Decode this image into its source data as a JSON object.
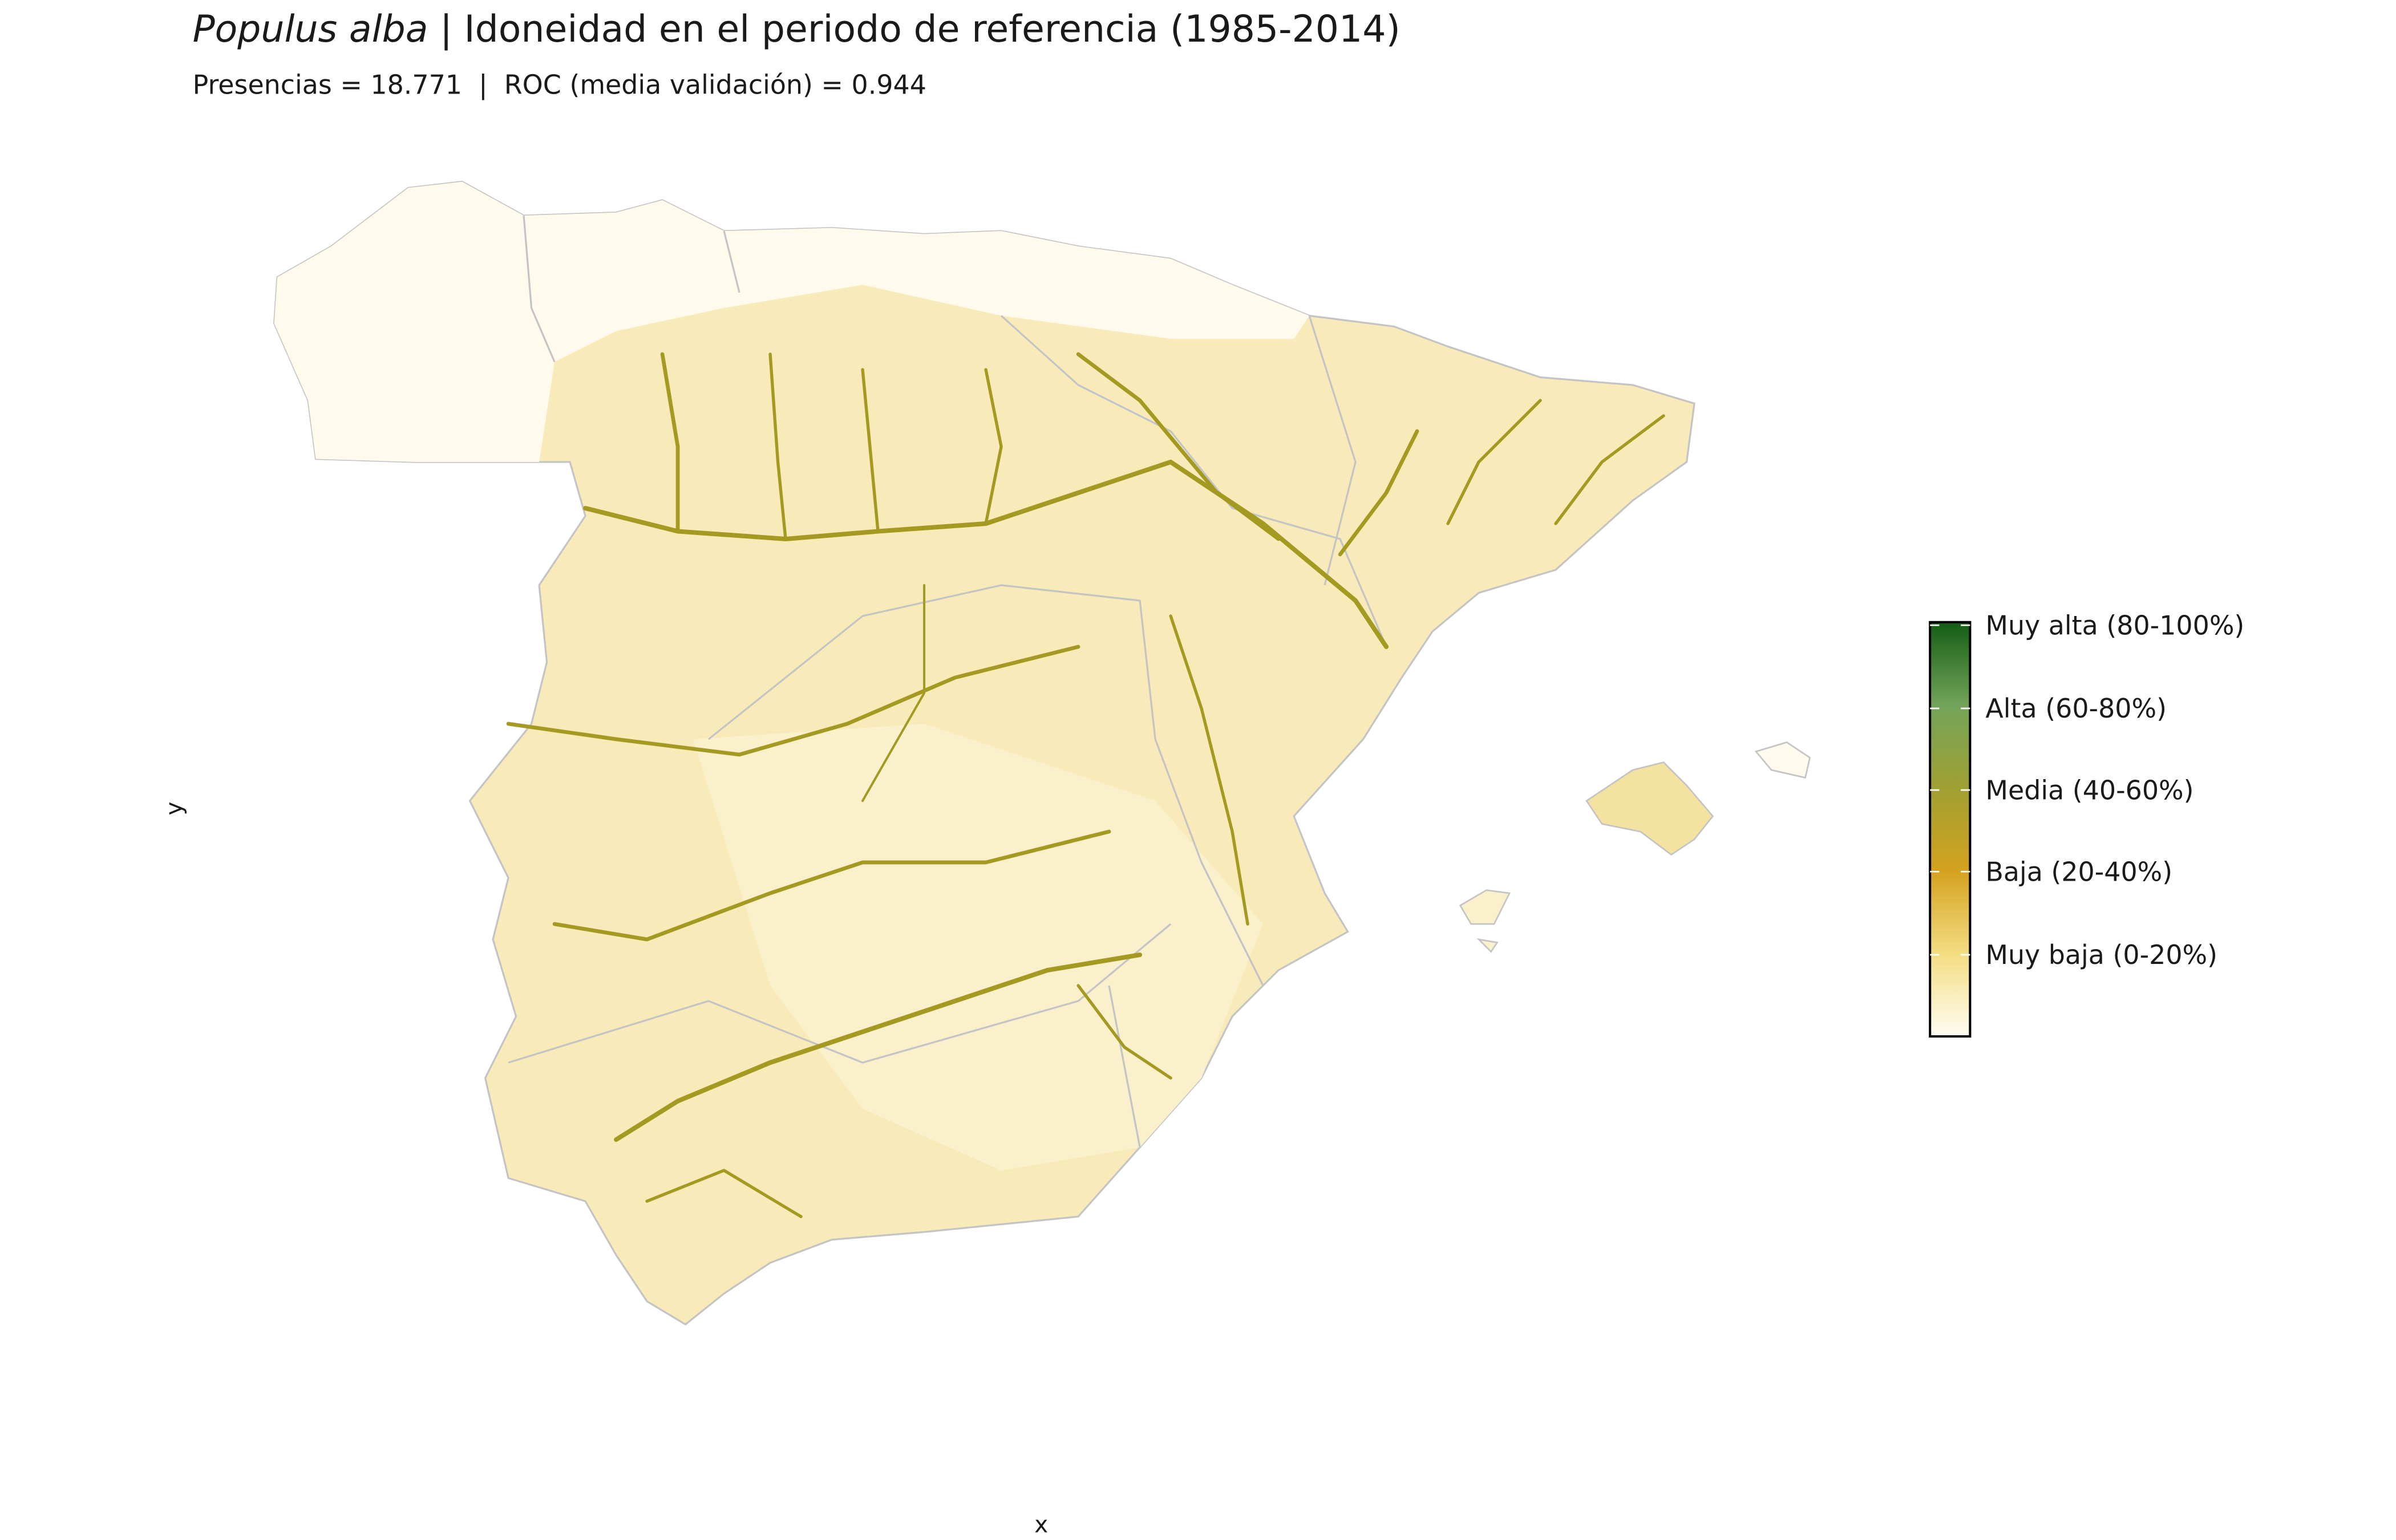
{
  "header": {
    "title_species": "Populus alba",
    "title_rest": "| Idoneidad en el periodo de referencia (1985-2014)",
    "subtitle": "Presencias = 18.771  |  ROC (media validación) = 0.944"
  },
  "axes": {
    "x_label": "x",
    "y_label": "y"
  },
  "legend": {
    "labels": [
      "Muy alta (80-100%)",
      "Alta (60-80%)",
      "Media (40-60%)",
      "Baja (20-40%)",
      "Muy baja (0-20%)"
    ]
  }
}
